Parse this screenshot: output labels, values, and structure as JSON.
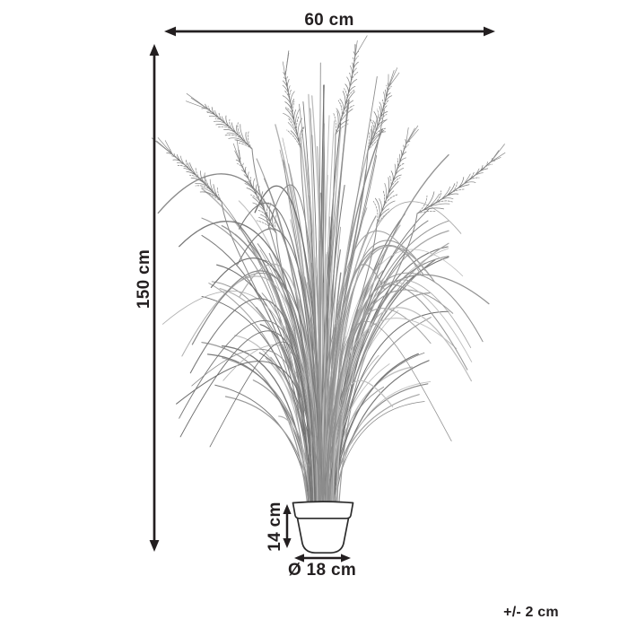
{
  "diagram": {
    "labels": {
      "width": "60 cm",
      "height": "150 cm",
      "pot_height": "14 cm",
      "pot_diameter": "Ø 18 cm",
      "tolerance": "+/- 2 cm"
    },
    "dimensions": {
      "width_cm": 60,
      "height_cm": 150,
      "pot_height_cm": 14,
      "pot_diameter_cm": 18,
      "tolerance_cm": 2
    },
    "colors": {
      "ink": "#231f20",
      "line_art_gray": "#8a8a8a",
      "pot_outline": "#2b2b2b",
      "background": "#ffffff"
    },
    "illustration": {
      "subject": "ornamental grass plant with feathery plumes in round flower pot",
      "style": "thin gray line drawing"
    }
  }
}
